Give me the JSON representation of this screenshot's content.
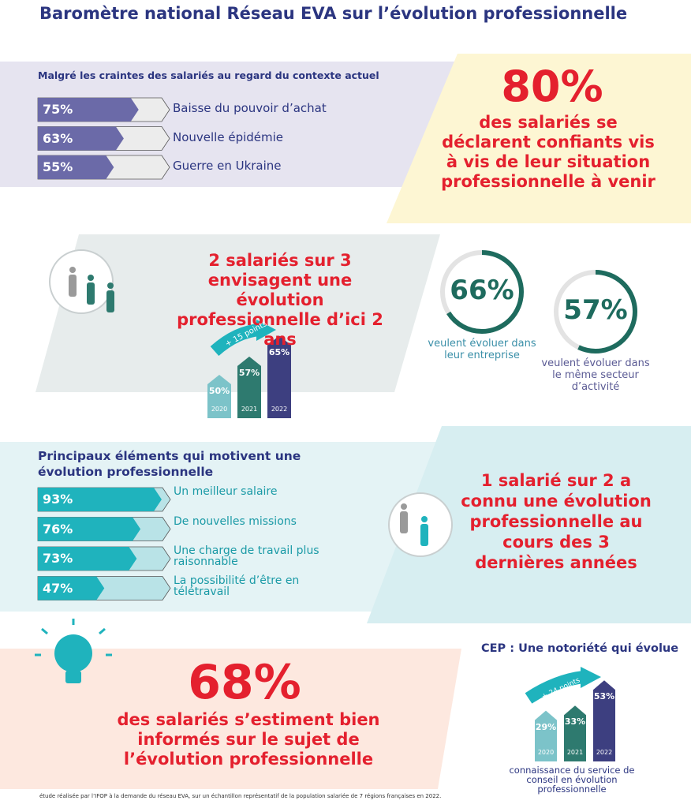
{
  "title": "Baromètre national Réseau EVA sur l’évolution professionnelle",
  "concerns": {
    "heading": "Malgré les craintes des salariés au regard du contexte actuel",
    "items": [
      {
        "value": 75,
        "label": "75%",
        "text": "Baisse du pouvoir d’achat"
      },
      {
        "value": 63,
        "label": "63%",
        "text": "Nouvelle épidémie"
      },
      {
        "value": 55,
        "label": "55%",
        "text": "Guerre en Ukraine"
      }
    ]
  },
  "confidence": {
    "value": 80,
    "label": "80%",
    "text": "des salariés se déclarent confiants vis à vis de leur situation professionnelle à venir"
  },
  "evolution": {
    "headline": "2 salariés sur 3 envisagent une évolution professionnelle d’ici 2 ans",
    "gain": "+ 15 points",
    "bars": [
      {
        "year": "2020",
        "value": 50,
        "label": "50%",
        "color": "#7cc3c9"
      },
      {
        "year": "2021",
        "value": 57,
        "label": "57%",
        "color": "#2e7a6f"
      },
      {
        "year": "2022",
        "value": 65,
        "label": "65%",
        "color": "#3d3f80"
      }
    ],
    "donuts": [
      {
        "value": 66,
        "label": "66%",
        "text": "veulent évoluer dans leur entreprise",
        "color": "#1e6b5e",
        "text_color": "#3a8fa8"
      },
      {
        "value": 57,
        "label": "57%",
        "text": "veulent évoluer dans le même secteur d’activité",
        "color": "#1e6b5e",
        "text_color": "#5a5a94"
      }
    ]
  },
  "motivations": {
    "heading": "Principaux éléments qui motivent une évolution professionnelle",
    "items": [
      {
        "value": 93,
        "label": "93%",
        "text": "Un meilleur salaire"
      },
      {
        "value": 76,
        "label": "76%",
        "text": "De nouvelles missions"
      },
      {
        "value": 73,
        "label": "73%",
        "text": "Une charge de travail plus raisonnable"
      },
      {
        "value": 47,
        "label": "47%",
        "text": "La possibilité d’être en télétravail"
      }
    ]
  },
  "past": {
    "text": "1 salarié sur 2 a connu une évolution professionnelle au cours des 3 dernières années"
  },
  "informed": {
    "value": 68,
    "label": "68%",
    "text": "des salariés s’estiment bien informés sur le sujet de l’évolution professionnelle"
  },
  "cep": {
    "title": "CEP : Une notoriété qui évolue",
    "gain": "+ 24 points",
    "bars": [
      {
        "year": "2020",
        "value": 29,
        "label": "29%",
        "color": "#7cc3c9"
      },
      {
        "year": "2021",
        "value": 33,
        "label": "33%",
        "color": "#2e7a6f"
      },
      {
        "year": "2022",
        "value": 53,
        "label": "53%",
        "color": "#3d3f80"
      }
    ],
    "caption": "connaissance du service de conseil en évolution professionnelle"
  },
  "footnote": "étude réalisée par l’IFOP à la demande du réseau EVA, sur un échantillon représentatif de la population salariée de 7 régions françaises en 2022."
}
